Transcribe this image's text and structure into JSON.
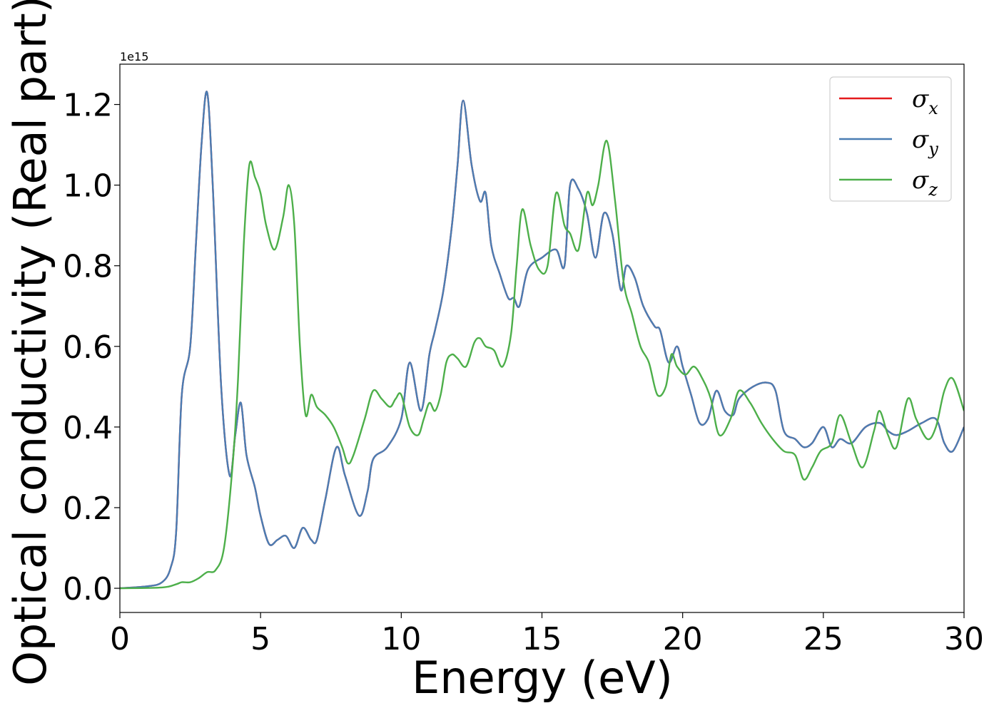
{
  "chart_data": {
    "type": "line",
    "xlabel": "Energy (eV)",
    "ylabel": "Optical conductivity (Real part)",
    "y_offset_label": "1e15",
    "xlim": [
      0,
      30
    ],
    "ylim": [
      -0.06,
      1.3
    ],
    "x_ticks": [
      0,
      5,
      10,
      15,
      20,
      25,
      30
    ],
    "x_tick_labels": [
      "0",
      "5",
      "10",
      "15",
      "20",
      "25",
      "30"
    ],
    "y_ticks": [
      0.0,
      0.2,
      0.4,
      0.6,
      0.8,
      1.0,
      1.2
    ],
    "y_tick_labels": [
      "0.0",
      "0.2",
      "0.4",
      "0.6",
      "0.8",
      "1.0",
      "1.2"
    ],
    "grid": false,
    "legend_position": "top-right",
    "series": [
      {
        "name": "σx",
        "legend_base": "σ",
        "legend_sub": "x",
        "color": "#e41a1c",
        "x": [
          0,
          1.0,
          1.5,
          1.8,
          2.0,
          2.2,
          2.5,
          2.7,
          2.9,
          3.1,
          3.3,
          3.6,
          3.9,
          4.1,
          4.3,
          4.5,
          4.8,
          5.0,
          5.3,
          5.6,
          5.9,
          6.2,
          6.5,
          6.8,
          7.0,
          7.3,
          7.7,
          8.0,
          8.5,
          8.8,
          9.0,
          9.5,
          10.0,
          10.3,
          10.7,
          11.0,
          11.2,
          11.5,
          11.8,
          12.0,
          12.2,
          12.5,
          12.8,
          13.0,
          13.2,
          13.5,
          13.8,
          14.0,
          14.2,
          14.5,
          15.0,
          15.5,
          15.8,
          16.0,
          16.3,
          16.6,
          16.9,
          17.2,
          17.5,
          17.8,
          18.0,
          18.3,
          18.6,
          19.0,
          19.2,
          19.5,
          19.8,
          20.0,
          20.3,
          20.6,
          20.9,
          21.2,
          21.5,
          21.8,
          22.0,
          22.5,
          23.0,
          23.3,
          23.6,
          24.0,
          24.3,
          24.6,
          25.0,
          25.3,
          25.6,
          26.0,
          26.5,
          27.0,
          27.3,
          27.6,
          28.0,
          28.5,
          29.0,
          29.3,
          29.6,
          30.0
        ],
        "y": [
          0.0,
          0.005,
          0.015,
          0.05,
          0.14,
          0.48,
          0.6,
          0.85,
          1.1,
          1.23,
          1.0,
          0.5,
          0.28,
          0.38,
          0.46,
          0.33,
          0.25,
          0.18,
          0.11,
          0.12,
          0.13,
          0.1,
          0.15,
          0.12,
          0.12,
          0.22,
          0.35,
          0.28,
          0.18,
          0.24,
          0.32,
          0.35,
          0.42,
          0.56,
          0.44,
          0.58,
          0.64,
          0.74,
          0.9,
          1.05,
          1.21,
          1.05,
          0.96,
          0.98,
          0.85,
          0.78,
          0.72,
          0.72,
          0.7,
          0.79,
          0.82,
          0.84,
          0.8,
          1.0,
          0.99,
          0.93,
          0.82,
          0.93,
          0.88,
          0.74,
          0.8,
          0.77,
          0.7,
          0.65,
          0.64,
          0.56,
          0.6,
          0.55,
          0.48,
          0.41,
          0.42,
          0.49,
          0.44,
          0.43,
          0.47,
          0.5,
          0.51,
          0.49,
          0.39,
          0.37,
          0.35,
          0.36,
          0.4,
          0.35,
          0.37,
          0.36,
          0.4,
          0.41,
          0.39,
          0.38,
          0.39,
          0.41,
          0.42,
          0.36,
          0.34,
          0.4
        ]
      },
      {
        "name": "σy",
        "legend_base": "σ",
        "legend_sub": "y",
        "color": "#4a7db3",
        "x": [
          0,
          1.0,
          1.5,
          1.8,
          2.0,
          2.2,
          2.5,
          2.7,
          2.9,
          3.1,
          3.3,
          3.6,
          3.9,
          4.1,
          4.3,
          4.5,
          4.8,
          5.0,
          5.3,
          5.6,
          5.9,
          6.2,
          6.5,
          6.8,
          7.0,
          7.3,
          7.7,
          8.0,
          8.5,
          8.8,
          9.0,
          9.5,
          10.0,
          10.3,
          10.7,
          11.0,
          11.2,
          11.5,
          11.8,
          12.0,
          12.2,
          12.5,
          12.8,
          13.0,
          13.2,
          13.5,
          13.8,
          14.0,
          14.2,
          14.5,
          15.0,
          15.5,
          15.8,
          16.0,
          16.3,
          16.6,
          16.9,
          17.2,
          17.5,
          17.8,
          18.0,
          18.3,
          18.6,
          19.0,
          19.2,
          19.5,
          19.8,
          20.0,
          20.3,
          20.6,
          20.9,
          21.2,
          21.5,
          21.8,
          22.0,
          22.5,
          23.0,
          23.3,
          23.6,
          24.0,
          24.3,
          24.6,
          25.0,
          25.3,
          25.6,
          26.0,
          26.5,
          27.0,
          27.3,
          27.6,
          28.0,
          28.5,
          29.0,
          29.3,
          29.6,
          30.0
        ],
        "y": [
          0.0,
          0.005,
          0.015,
          0.05,
          0.14,
          0.48,
          0.6,
          0.85,
          1.1,
          1.23,
          1.0,
          0.5,
          0.28,
          0.38,
          0.46,
          0.33,
          0.25,
          0.18,
          0.11,
          0.12,
          0.13,
          0.1,
          0.15,
          0.12,
          0.12,
          0.22,
          0.35,
          0.28,
          0.18,
          0.24,
          0.32,
          0.35,
          0.42,
          0.56,
          0.44,
          0.58,
          0.64,
          0.74,
          0.9,
          1.05,
          1.21,
          1.05,
          0.96,
          0.98,
          0.85,
          0.78,
          0.72,
          0.72,
          0.7,
          0.79,
          0.82,
          0.84,
          0.8,
          1.0,
          0.99,
          0.93,
          0.82,
          0.93,
          0.88,
          0.74,
          0.8,
          0.77,
          0.7,
          0.65,
          0.64,
          0.56,
          0.6,
          0.55,
          0.48,
          0.41,
          0.42,
          0.49,
          0.44,
          0.43,
          0.47,
          0.5,
          0.51,
          0.49,
          0.39,
          0.37,
          0.35,
          0.36,
          0.4,
          0.35,
          0.37,
          0.36,
          0.4,
          0.41,
          0.39,
          0.38,
          0.39,
          0.41,
          0.42,
          0.36,
          0.34,
          0.4
        ]
      },
      {
        "name": "σz",
        "legend_base": "σ",
        "legend_sub": "z",
        "color": "#4daf4a",
        "x": [
          0,
          1.5,
          2.0,
          2.2,
          2.5,
          2.8,
          3.1,
          3.4,
          3.7,
          4.0,
          4.2,
          4.4,
          4.6,
          4.8,
          5.0,
          5.2,
          5.5,
          5.8,
          6.0,
          6.2,
          6.4,
          6.6,
          6.8,
          7.0,
          7.3,
          7.6,
          7.9,
          8.1,
          8.3,
          8.7,
          9.0,
          9.3,
          9.6,
          9.8,
          10.0,
          10.3,
          10.6,
          10.8,
          11.0,
          11.2,
          11.4,
          11.6,
          11.8,
          12.0,
          12.3,
          12.6,
          12.8,
          13.0,
          13.3,
          13.6,
          13.9,
          14.1,
          14.3,
          14.6,
          14.9,
          15.2,
          15.5,
          15.8,
          16.0,
          16.3,
          16.6,
          16.8,
          17.0,
          17.3,
          17.6,
          17.9,
          18.2,
          18.5,
          18.8,
          19.1,
          19.4,
          19.6,
          19.8,
          20.1,
          20.4,
          20.7,
          21.0,
          21.3,
          21.7,
          22.0,
          22.4,
          22.8,
          23.2,
          23.6,
          24.0,
          24.3,
          24.6,
          24.9,
          25.3,
          25.6,
          26.0,
          26.4,
          26.8,
          27.0,
          27.3,
          27.6,
          28.0,
          28.3,
          28.7,
          29.0,
          29.3,
          29.6,
          30.0
        ],
        "y": [
          0.0,
          0.002,
          0.01,
          0.015,
          0.015,
          0.025,
          0.04,
          0.045,
          0.1,
          0.3,
          0.52,
          0.85,
          1.05,
          1.02,
          0.98,
          0.9,
          0.84,
          0.92,
          1.0,
          0.9,
          0.6,
          0.43,
          0.48,
          0.45,
          0.43,
          0.4,
          0.35,
          0.31,
          0.33,
          0.42,
          0.49,
          0.47,
          0.45,
          0.47,
          0.48,
          0.4,
          0.38,
          0.42,
          0.46,
          0.44,
          0.48,
          0.56,
          0.58,
          0.57,
          0.55,
          0.61,
          0.62,
          0.6,
          0.59,
          0.55,
          0.63,
          0.8,
          0.94,
          0.85,
          0.79,
          0.8,
          0.98,
          0.9,
          0.88,
          0.84,
          0.98,
          0.95,
          1.0,
          1.11,
          0.96,
          0.76,
          0.68,
          0.6,
          0.56,
          0.48,
          0.5,
          0.58,
          0.55,
          0.53,
          0.55,
          0.52,
          0.47,
          0.38,
          0.42,
          0.49,
          0.46,
          0.41,
          0.37,
          0.34,
          0.33,
          0.27,
          0.3,
          0.34,
          0.36,
          0.43,
          0.36,
          0.3,
          0.39,
          0.44,
          0.38,
          0.35,
          0.47,
          0.42,
          0.37,
          0.4,
          0.49,
          0.52,
          0.44
        ]
      }
    ]
  }
}
